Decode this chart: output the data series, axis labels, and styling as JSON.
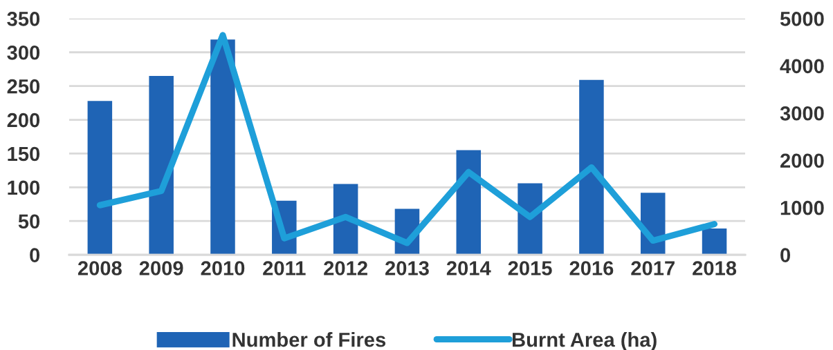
{
  "chart_data": {
    "type": "bar",
    "categories": [
      "2008",
      "2009",
      "2010",
      "2011",
      "2012",
      "2013",
      "2014",
      "2015",
      "2016",
      "2017",
      "2018"
    ],
    "series": [
      {
        "name": "Number of Fires",
        "color": "#1f64b5",
        "values": [
          228,
          265,
          319,
          80,
          105,
          68,
          155,
          106,
          259,
          92,
          39
        ]
      },
      {
        "name": "Burnt Area (ha)",
        "type": "line",
        "axis": "y2",
        "color": "#1e9fd9",
        "values": [
          1050,
          1350,
          4650,
          350,
          800,
          250,
          1750,
          800,
          1850,
          300,
          650
        ]
      }
    ],
    "ylim": [
      0,
      350
    ],
    "yticks": [
      0,
      50,
      100,
      150,
      200,
      250,
      300,
      350
    ],
    "y2lim": [
      0,
      5000
    ],
    "y2ticks": [
      0,
      1000,
      2000,
      3000,
      4000,
      5000
    ],
    "grid": "y",
    "legend": "bottom"
  }
}
